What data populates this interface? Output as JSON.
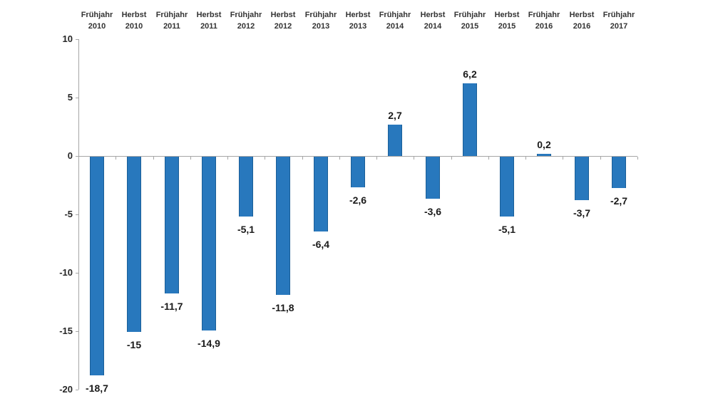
{
  "chart_data": {
    "type": "bar",
    "title": "",
    "xlabel": "",
    "ylabel": "",
    "categories": [
      "Frühjahr 2010",
      "Herbst 2010",
      "Frühjahr 2011",
      "Herbst 2011",
      "Frühjahr 2012",
      "Herbst 2012",
      "Frühjahr 2013",
      "Herbst 2013",
      "Frühjahr 2014",
      "Herbst 2014",
      "Frühjahr 2015",
      "Herbst 2015",
      "Frühjahr 2016",
      "Herbst 2016",
      "Frühjahr 2017"
    ],
    "values": [
      -18.7,
      -15,
      -11.7,
      -14.9,
      -5.1,
      -11.8,
      -6.4,
      -2.6,
      2.7,
      -3.6,
      6.2,
      -5.1,
      0.2,
      -3.7,
      -2.7
    ],
    "value_labels": [
      "-18,7",
      "-15",
      "-11,7",
      "-14,9",
      "-5,1",
      "-11,8",
      "-6,4",
      "-2,6",
      "2,7",
      "-3,6",
      "6,2",
      "-5,1",
      "0,2",
      "-3,7",
      "-2,7"
    ],
    "y_ticks": [
      10,
      5,
      0,
      -5,
      -10,
      -15,
      -20
    ],
    "y_tick_labels": [
      "10",
      "5",
      "0",
      "-5",
      "-10",
      "-15",
      "-20"
    ],
    "ylim": [
      -20,
      10
    ],
    "grid": false,
    "legend": null,
    "category_label_position": "top",
    "value_label_decimal": "comma",
    "colors": {
      "bar_fill": "#2878bd",
      "bar_border": "#1b5f98",
      "axis": "#a6a6a6",
      "category_text": "#333333",
      "value_text": "#1a1a1a",
      "y_tick_text": "#262626",
      "background": "#ffffff"
    }
  }
}
